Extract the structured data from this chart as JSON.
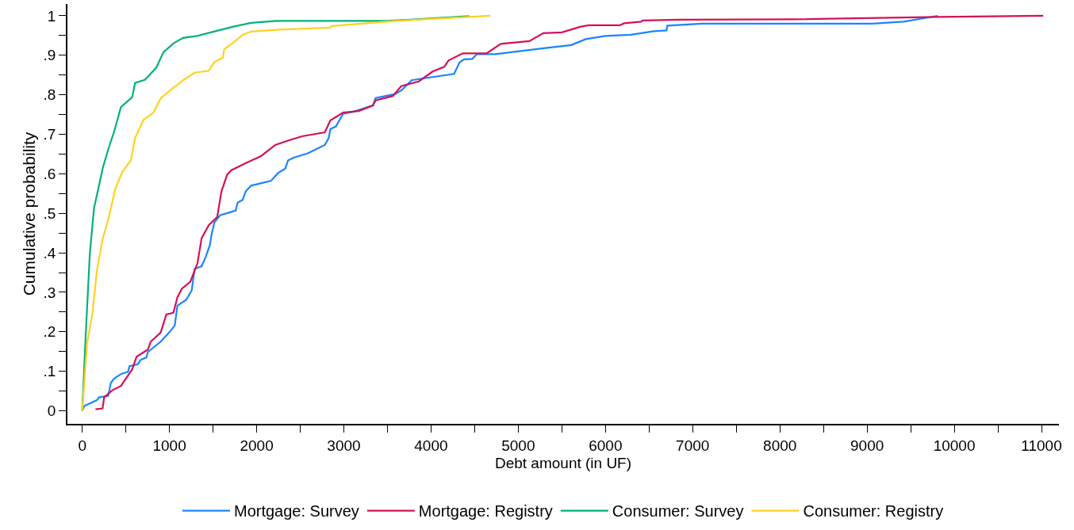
{
  "chart_data": {
    "type": "line",
    "xlabel": "Debt amount (in UF)",
    "ylabel": "Cumulative probability",
    "xlim": [
      -170,
      11200
    ],
    "ylim": [
      -0.033,
      1.03
    ],
    "xticks": [
      0,
      {
        "value": 500,
        "label": null
      },
      1000,
      {
        "value": 1500,
        "label": null
      },
      2000,
      {
        "value": 2500,
        "label": null
      },
      3000,
      {
        "value": 3500,
        "label": null
      },
      4000,
      {
        "value": 4500,
        "label": null
      },
      5000,
      {
        "value": 5500,
        "label": null
      },
      6000,
      {
        "value": 6500,
        "label": null
      },
      7000,
      {
        "value": 7500,
        "label": null
      },
      8000,
      {
        "value": 8500,
        "label": null
      },
      9000,
      {
        "value": 9500,
        "label": null
      },
      10000,
      {
        "value": 10500,
        "label": null
      },
      11000
    ],
    "yticks": [
      0,
      {
        "value": 0.05,
        "label": null
      },
      {
        "value": 0.1,
        "label": ".1"
      },
      {
        "value": 0.15,
        "label": null
      },
      {
        "value": 0.2,
        "label": ".2"
      },
      {
        "value": 0.25,
        "label": null
      },
      {
        "value": 0.3,
        "label": ".3"
      },
      {
        "value": 0.35,
        "label": null
      },
      {
        "value": 0.4,
        "label": ".4"
      },
      {
        "value": 0.45,
        "label": null
      },
      {
        "value": 0.5,
        "label": ".5"
      },
      {
        "value": 0.55,
        "label": null
      },
      {
        "value": 0.6,
        "label": ".6"
      },
      {
        "value": 0.65,
        "label": null
      },
      {
        "value": 0.7,
        "label": ".7"
      },
      {
        "value": 0.75,
        "label": null
      },
      {
        "value": 0.8,
        "label": ".8"
      },
      {
        "value": 0.85,
        "label": null
      },
      {
        "value": 0.9,
        "label": ".9"
      },
      {
        "value": 0.95,
        "label": null
      },
      1
    ],
    "legend": "bottom",
    "line_style": "solid",
    "series": [
      {
        "name": "Mortgage: Survey",
        "color": "#1a85ff",
        "x": [
          0,
          22,
          168,
          191,
          298,
          327,
          363,
          444,
          525,
          542,
          637,
          672,
          736,
          753,
          899,
          996,
          1061,
          1091,
          1191,
          1256,
          1288,
          1369,
          1418,
          1464,
          1482,
          1515,
          1581,
          1759,
          1782,
          1840,
          1873,
          1936,
          2164,
          2245,
          2327,
          2360,
          2425,
          2587,
          2782,
          2827,
          2845,
          2909,
          2991,
          3106,
          3334,
          3364,
          3591,
          3664,
          3778,
          3955,
          4264,
          4327,
          4379,
          4473,
          4525,
          4736,
          5255,
          5609,
          5773,
          6000,
          6291,
          6555,
          6700,
          6709,
          7106,
          8145,
          9055,
          9418,
          9809
        ],
        "values": [
          0,
          0.012,
          0.027,
          0.034,
          0.038,
          0.07,
          0.081,
          0.093,
          0.099,
          0.113,
          0.118,
          0.129,
          0.135,
          0.149,
          0.175,
          0.198,
          0.216,
          0.266,
          0.281,
          0.305,
          0.359,
          0.366,
          0.391,
          0.42,
          0.445,
          0.477,
          0.495,
          0.507,
          0.527,
          0.534,
          0.555,
          0.57,
          0.582,
          0.602,
          0.613,
          0.634,
          0.641,
          0.652,
          0.673,
          0.691,
          0.713,
          0.72,
          0.752,
          0.757,
          0.773,
          0.792,
          0.802,
          0.812,
          0.837,
          0.843,
          0.853,
          0.882,
          0.89,
          0.891,
          0.903,
          0.903,
          0.917,
          0.926,
          0.941,
          0.949,
          0.952,
          0.961,
          0.963,
          0.975,
          0.98,
          0.98,
          0.98,
          0.985,
          1
        ]
      },
      {
        "name": "Mortgage: Registry",
        "color": "#d41159",
        "x": [
          152,
          233,
          251,
          345,
          444,
          573,
          623,
          753,
          785,
          899,
          964,
          1045,
          1091,
          1142,
          1240,
          1321,
          1369,
          1451,
          1548,
          1596,
          1662,
          1709,
          1873,
          2051,
          2214,
          2360,
          2522,
          2782,
          2845,
          2991,
          3172,
          3334,
          3364,
          3561,
          3658,
          3860,
          4018,
          4152,
          4200,
          4364,
          4636,
          4800,
          5127,
          5288,
          5500,
          5709,
          5809,
          6164,
          6214,
          6409,
          6425,
          6845,
          8145,
          9809,
          11020
        ],
        "values": [
          0.004,
          0.006,
          0.034,
          0.052,
          0.063,
          0.105,
          0.137,
          0.155,
          0.175,
          0.198,
          0.244,
          0.248,
          0.287,
          0.309,
          0.327,
          0.373,
          0.437,
          0.47,
          0.491,
          0.555,
          0.598,
          0.609,
          0.627,
          0.645,
          0.673,
          0.684,
          0.695,
          0.705,
          0.735,
          0.755,
          0.759,
          0.773,
          0.786,
          0.797,
          0.822,
          0.834,
          0.859,
          0.871,
          0.887,
          0.905,
          0.905,
          0.929,
          0.936,
          0.956,
          0.958,
          0.972,
          0.976,
          0.976,
          0.981,
          0.985,
          0.988,
          0.99,
          0.991,
          0.997,
          1
        ]
      },
      {
        "name": "Consumer: Survey",
        "color": "#00b27a",
        "x": [
          0,
          38,
          87,
          135,
          184,
          233,
          298,
          363,
          444,
          573,
          606,
          718,
          850,
          931,
          1045,
          1155,
          1318,
          1545,
          1743,
          1936,
          2227,
          3496,
          4436
        ],
        "values": [
          0,
          0.184,
          0.398,
          0.513,
          0.562,
          0.613,
          0.662,
          0.705,
          0.769,
          0.794,
          0.83,
          0.838,
          0.869,
          0.908,
          0.93,
          0.944,
          0.949,
          0.962,
          0.973,
          0.982,
          0.987,
          0.987,
          0.999
        ]
      },
      {
        "name": "Consumer: Registry",
        "color": "#ffd21f",
        "x": [
          0,
          55,
          118,
          168,
          233,
          298,
          379,
          460,
          558,
          606,
          704,
          818,
          899,
          996,
          1158,
          1288,
          1451,
          1515,
          1613,
          1627,
          1743,
          1840,
          1936,
          2263,
          2845,
          2860,
          3600,
          4678
        ],
        "values": [
          0,
          0.17,
          0.249,
          0.355,
          0.434,
          0.484,
          0.562,
          0.605,
          0.634,
          0.691,
          0.737,
          0.755,
          0.791,
          0.809,
          0.837,
          0.856,
          0.861,
          0.883,
          0.894,
          0.915,
          0.934,
          0.952,
          0.96,
          0.965,
          0.97,
          0.974,
          0.987,
          1
        ]
      }
    ]
  }
}
